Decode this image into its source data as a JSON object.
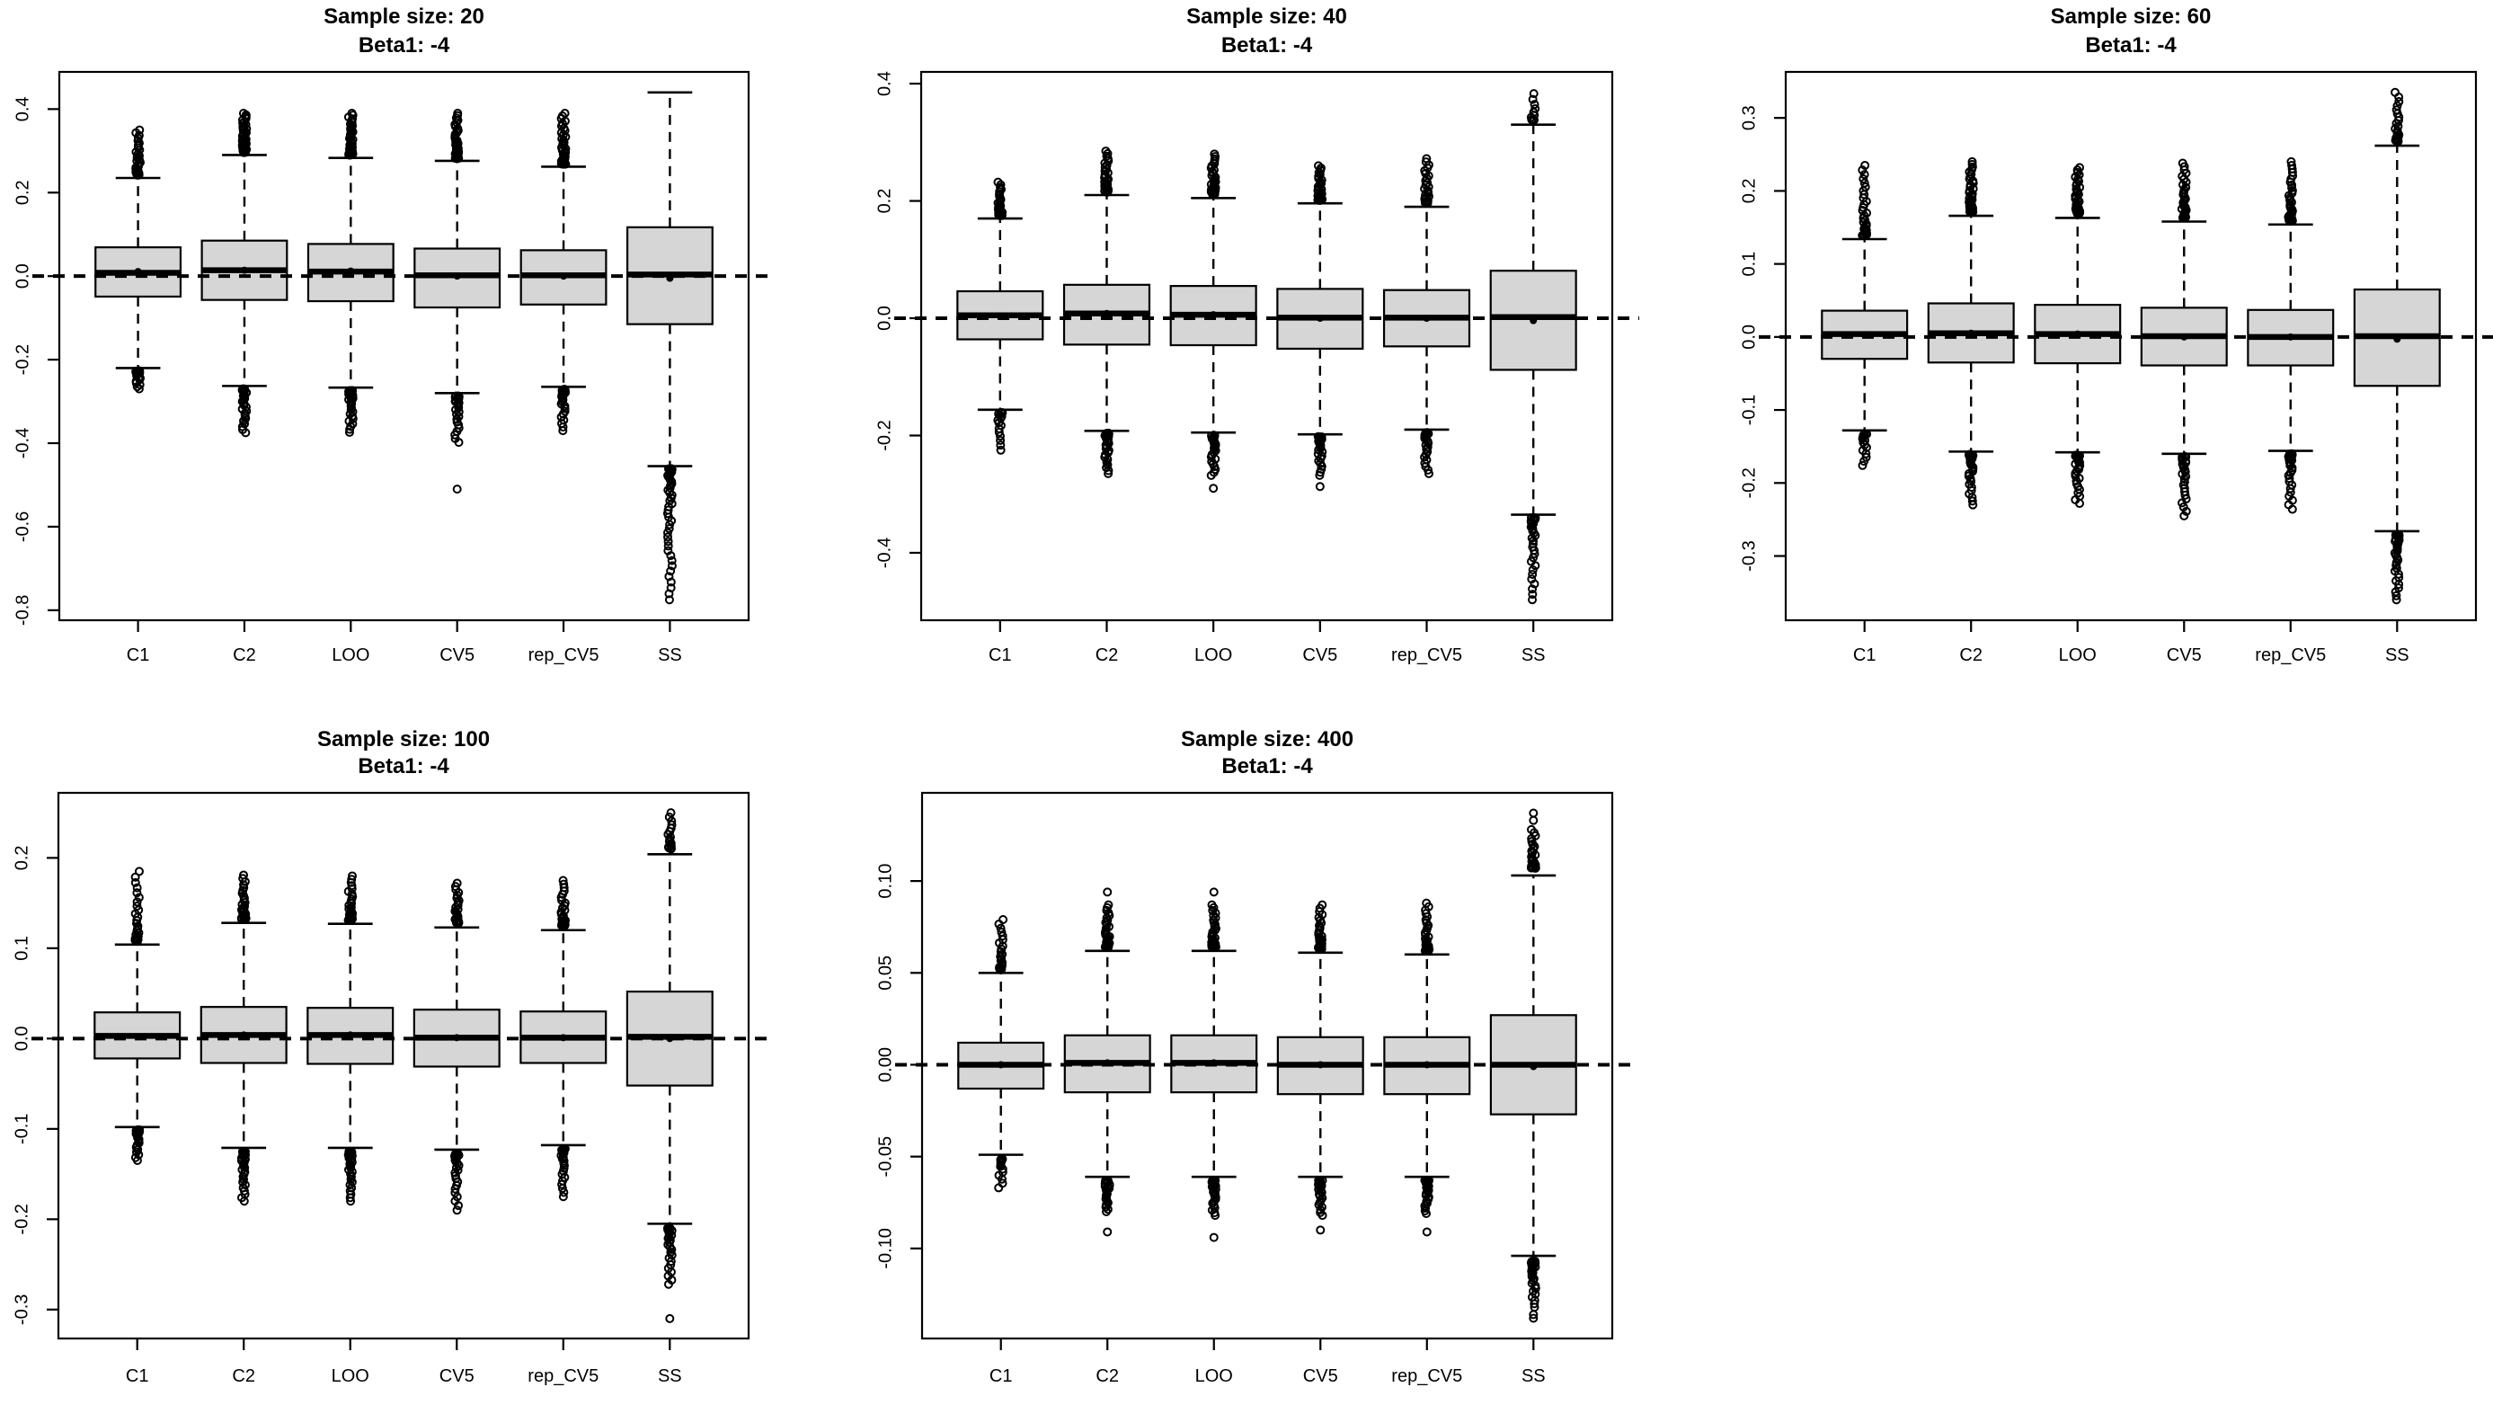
{
  "figure": {
    "background": "#ffffff",
    "box_fill": "#d6d6d6",
    "line_color": "#000000",
    "grid": {
      "rows": 2,
      "cols": 3,
      "empty_cells": [
        "row2-col3"
      ]
    }
  },
  "chart_data": [
    {
      "type": "boxplot",
      "title": "Sample size: 20",
      "subtitle": "Beta1: -4",
      "categories": [
        "C1",
        "C2",
        "LOO",
        "CV5",
        "rep_CV5",
        "SS"
      ],
      "ylim": [
        -0.824,
        0.489
      ],
      "yticks": [
        0.4,
        0.2,
        0.0,
        -0.2,
        -0.4,
        -0.6,
        -0.8
      ],
      "ytick_labels": [
        "0.4",
        "0.2",
        "0.0",
        "-0.2",
        "-0.4",
        "-0.6",
        "-0.8"
      ],
      "ref_line": 0,
      "boxes": [
        {
          "label": "C1",
          "q1": -0.049,
          "median": 0.008,
          "q3": 0.069,
          "mean": 0.011,
          "whisker_low": -0.22,
          "whisker_high": 0.235,
          "outliers_high": {
            "from": 0.242,
            "to": 0.35,
            "count": 34
          },
          "outliers_low": {
            "from": -0.227,
            "to": -0.27,
            "count": 18
          },
          "extra_outliers": []
        },
        {
          "label": "C2",
          "q1": -0.057,
          "median": 0.014,
          "q3": 0.085,
          "mean": 0.014,
          "whisker_low": -0.263,
          "whisker_high": 0.29,
          "outliers_high": {
            "from": 0.296,
            "to": 0.39,
            "count": 48
          },
          "outliers_low": {
            "from": -0.27,
            "to": -0.375,
            "count": 30
          },
          "extra_outliers": []
        },
        {
          "label": "LOO",
          "q1": -0.06,
          "median": 0.011,
          "q3": 0.077,
          "mean": 0.012,
          "whisker_low": -0.267,
          "whisker_high": 0.283,
          "outliers_high": {
            "from": 0.29,
            "to": 0.39,
            "count": 46
          },
          "outliers_low": {
            "from": -0.274,
            "to": -0.374,
            "count": 30
          },
          "extra_outliers": []
        },
        {
          "label": "CV5",
          "q1": -0.075,
          "median": 0.002,
          "q3": 0.066,
          "mean": 0.0,
          "whisker_low": -0.28,
          "whisker_high": 0.276,
          "outliers_high": {
            "from": 0.282,
            "to": 0.39,
            "count": 40
          },
          "outliers_low": {
            "from": -0.287,
            "to": -0.398,
            "count": 26
          },
          "extra_outliers": [
            -0.51
          ]
        },
        {
          "label": "rep_CV5",
          "q1": -0.068,
          "median": 0.002,
          "q3": 0.062,
          "mean": 0.0,
          "whisker_low": -0.265,
          "whisker_high": 0.262,
          "outliers_high": {
            "from": 0.268,
            "to": 0.39,
            "count": 40
          },
          "outliers_low": {
            "from": -0.271,
            "to": -0.37,
            "count": 24
          },
          "extra_outliers": []
        },
        {
          "label": "SS",
          "q1": -0.115,
          "median": 0.004,
          "q3": 0.117,
          "mean": -0.005,
          "whisker_low": -0.455,
          "whisker_high": 0.44,
          "outliers_high": {
            "from": 0,
            "to": 0,
            "count": 0
          },
          "outliers_low": {
            "from": -0.461,
            "to": -0.775,
            "count": 46
          },
          "extra_outliers": []
        }
      ]
    },
    {
      "type": "boxplot",
      "title": "Sample size: 40",
      "subtitle": "Beta1: -4",
      "categories": [
        "C1",
        "C2",
        "LOO",
        "CV5",
        "rep_CV5",
        "SS"
      ],
      "ylim": [
        -0.515,
        0.42
      ],
      "yticks": [
        0.4,
        0.2,
        0.0,
        -0.2,
        -0.4
      ],
      "ytick_labels": [
        "0.4",
        "0.2",
        "0.0",
        "-0.2",
        "-0.4"
      ],
      "ref_line": 0,
      "boxes": [
        {
          "label": "C1",
          "q1": -0.036,
          "median": 0.005,
          "q3": 0.046,
          "mean": 0.004,
          "whisker_low": -0.156,
          "whisker_high": 0.17,
          "outliers_high": {
            "from": 0.175,
            "to": 0.232,
            "count": 28
          },
          "outliers_low": {
            "from": -0.161,
            "to": -0.225,
            "count": 16
          },
          "extra_outliers": []
        },
        {
          "label": "C2",
          "q1": -0.045,
          "median": 0.008,
          "q3": 0.057,
          "mean": 0.008,
          "whisker_low": -0.192,
          "whisker_high": 0.21,
          "outliers_high": {
            "from": 0.215,
            "to": 0.285,
            "count": 34
          },
          "outliers_low": {
            "from": -0.196,
            "to": -0.265,
            "count": 28
          },
          "extra_outliers": []
        },
        {
          "label": "LOO",
          "q1": -0.046,
          "median": 0.006,
          "q3": 0.055,
          "mean": 0.006,
          "whisker_low": -0.195,
          "whisker_high": 0.205,
          "outliers_high": {
            "from": 0.211,
            "to": 0.28,
            "count": 34
          },
          "outliers_low": {
            "from": -0.2,
            "to": -0.268,
            "count": 28
          },
          "extra_outliers": [
            -0.29
          ]
        },
        {
          "label": "CV5",
          "q1": -0.052,
          "median": 0.001,
          "q3": 0.05,
          "mean": 0.0,
          "whisker_low": -0.198,
          "whisker_high": 0.196,
          "outliers_high": {
            "from": 0.201,
            "to": 0.26,
            "count": 32
          },
          "outliers_low": {
            "from": -0.202,
            "to": -0.268,
            "count": 26
          },
          "extra_outliers": [
            -0.287
          ]
        },
        {
          "label": "rep_CV5",
          "q1": -0.048,
          "median": 0.001,
          "q3": 0.048,
          "mean": 0.0,
          "whisker_low": -0.19,
          "whisker_high": 0.19,
          "outliers_high": {
            "from": 0.196,
            "to": 0.272,
            "count": 30
          },
          "outliers_low": {
            "from": -0.195,
            "to": -0.265,
            "count": 24
          },
          "extra_outliers": []
        },
        {
          "label": "SS",
          "q1": -0.088,
          "median": 0.002,
          "q3": 0.081,
          "mean": -0.004,
          "whisker_low": -0.335,
          "whisker_high": 0.33,
          "outliers_high": {
            "from": 0.338,
            "to": 0.383,
            "count": 10
          },
          "outliers_low": {
            "from": -0.34,
            "to": -0.48,
            "count": 32
          },
          "extra_outliers": []
        }
      ]
    },
    {
      "type": "boxplot",
      "title": "Sample size: 60",
      "subtitle": "Beta1: -4",
      "categories": [
        "C1",
        "C2",
        "LOO",
        "CV5",
        "rep_CV5",
        "SS"
      ],
      "ylim": [
        -0.388,
        0.363
      ],
      "yticks": [
        0.3,
        0.2,
        0.1,
        0.0,
        -0.1,
        -0.2,
        -0.3
      ],
      "ytick_labels": [
        "0.3",
        "0.2",
        "0.1",
        "0.0",
        "-0.1",
        "-0.2",
        "-0.3"
      ],
      "ref_line": 0,
      "boxes": [
        {
          "label": "C1",
          "q1": -0.03,
          "median": 0.004,
          "q3": 0.036,
          "mean": 0.003,
          "whisker_low": -0.128,
          "whisker_high": 0.134,
          "outliers_high": {
            "from": 0.139,
            "to": 0.235,
            "count": 32
          },
          "outliers_low": {
            "from": -0.133,
            "to": -0.176,
            "count": 16
          },
          "extra_outliers": []
        },
        {
          "label": "C2",
          "q1": -0.035,
          "median": 0.005,
          "q3": 0.046,
          "mean": 0.005,
          "whisker_low": -0.157,
          "whisker_high": 0.166,
          "outliers_high": {
            "from": 0.171,
            "to": 0.24,
            "count": 40
          },
          "outliers_low": {
            "from": -0.161,
            "to": -0.23,
            "count": 28
          },
          "extra_outliers": []
        },
        {
          "label": "LOO",
          "q1": -0.036,
          "median": 0.004,
          "q3": 0.044,
          "mean": 0.004,
          "whisker_low": -0.158,
          "whisker_high": 0.163,
          "outliers_high": {
            "from": 0.168,
            "to": 0.232,
            "count": 40
          },
          "outliers_low": {
            "from": -0.162,
            "to": -0.228,
            "count": 28
          },
          "extra_outliers": []
        },
        {
          "label": "CV5",
          "q1": -0.039,
          "median": 0.001,
          "q3": 0.04,
          "mean": 0.0,
          "whisker_low": -0.16,
          "whisker_high": 0.158,
          "outliers_high": {
            "from": 0.163,
            "to": 0.238,
            "count": 34
          },
          "outliers_low": {
            "from": -0.164,
            "to": -0.245,
            "count": 28
          },
          "extra_outliers": []
        },
        {
          "label": "rep_CV5",
          "q1": -0.039,
          "median": 0.0,
          "q3": 0.037,
          "mean": 0.0,
          "whisker_low": -0.156,
          "whisker_high": 0.154,
          "outliers_high": {
            "from": 0.159,
            "to": 0.24,
            "count": 34
          },
          "outliers_low": {
            "from": -0.16,
            "to": -0.236,
            "count": 26
          },
          "extra_outliers": []
        },
        {
          "label": "SS",
          "q1": -0.067,
          "median": 0.001,
          "q3": 0.065,
          "mean": -0.003,
          "whisker_low": -0.266,
          "whisker_high": 0.262,
          "outliers_high": {
            "from": 0.268,
            "to": 0.335,
            "count": 22
          },
          "outliers_low": {
            "from": -0.271,
            "to": -0.36,
            "count": 34
          },
          "extra_outliers": []
        }
      ]
    },
    {
      "type": "boxplot",
      "title": "Sample size: 100",
      "subtitle": "Beta1: -4",
      "categories": [
        "C1",
        "C2",
        "LOO",
        "CV5",
        "rep_CV5",
        "SS"
      ],
      "ylim": [
        -0.332,
        0.272
      ],
      "yticks": [
        0.2,
        0.1,
        0.0,
        -0.1,
        -0.2,
        -0.3
      ],
      "ytick_labels": [
        "0.2",
        "0.1",
        "0.0",
        "-0.1",
        "-0.2",
        "-0.3"
      ],
      "ref_line": 0,
      "boxes": [
        {
          "label": "C1",
          "q1": -0.022,
          "median": 0.003,
          "q3": 0.029,
          "mean": 0.002,
          "whisker_low": -0.098,
          "whisker_high": 0.104,
          "outliers_high": {
            "from": 0.108,
            "to": 0.185,
            "count": 26
          },
          "outliers_low": {
            "from": -0.101,
            "to": -0.135,
            "count": 22
          },
          "extra_outliers": []
        },
        {
          "label": "C2",
          "q1": -0.027,
          "median": 0.004,
          "q3": 0.035,
          "mean": 0.004,
          "whisker_low": -0.121,
          "whisker_high": 0.128,
          "outliers_high": {
            "from": 0.132,
            "to": 0.181,
            "count": 28
          },
          "outliers_low": {
            "from": -0.125,
            "to": -0.18,
            "count": 30
          },
          "extra_outliers": []
        },
        {
          "label": "LOO",
          "q1": -0.028,
          "median": 0.004,
          "q3": 0.034,
          "mean": 0.004,
          "whisker_low": -0.121,
          "whisker_high": 0.127,
          "outliers_high": {
            "from": 0.131,
            "to": 0.18,
            "count": 28
          },
          "outliers_low": {
            "from": -0.125,
            "to": -0.18,
            "count": 30
          },
          "extra_outliers": []
        },
        {
          "label": "CV5",
          "q1": -0.031,
          "median": 0.001,
          "q3": 0.032,
          "mean": 0.001,
          "whisker_low": -0.123,
          "whisker_high": 0.123,
          "outliers_high": {
            "from": 0.128,
            "to": 0.172,
            "count": 26
          },
          "outliers_low": {
            "from": -0.127,
            "to": -0.19,
            "count": 26
          },
          "extra_outliers": []
        },
        {
          "label": "rep_CV5",
          "q1": -0.027,
          "median": 0.001,
          "q3": 0.03,
          "mean": 0.001,
          "whisker_low": -0.118,
          "whisker_high": 0.12,
          "outliers_high": {
            "from": 0.125,
            "to": 0.175,
            "count": 26
          },
          "outliers_low": {
            "from": -0.122,
            "to": -0.175,
            "count": 24
          },
          "extra_outliers": []
        },
        {
          "label": "SS",
          "q1": -0.052,
          "median": 0.002,
          "q3": 0.052,
          "mean": 0.0,
          "whisker_low": -0.205,
          "whisker_high": 0.204,
          "outliers_high": {
            "from": 0.21,
            "to": 0.25,
            "count": 18
          },
          "outliers_low": {
            "from": -0.21,
            "to": -0.272,
            "count": 28
          },
          "extra_outliers": [
            -0.31
          ]
        }
      ]
    },
    {
      "type": "boxplot",
      "title": "Sample size: 400",
      "subtitle": "Beta1: -4",
      "categories": [
        "C1",
        "C2",
        "LOO",
        "CV5",
        "rep_CV5",
        "SS"
      ],
      "ylim": [
        -0.149,
        0.148
      ],
      "yticks": [
        0.1,
        0.05,
        0.0,
        -0.05,
        -0.1
      ],
      "ytick_labels": [
        "0.10",
        "0.05",
        "0.00",
        "-0.05",
        "-0.10"
      ],
      "ref_line": 0,
      "boxes": [
        {
          "label": "C1",
          "q1": -0.013,
          "median": 0.0,
          "q3": 0.012,
          "mean": 0.0,
          "whisker_low": -0.049,
          "whisker_high": 0.05,
          "outliers_high": {
            "from": 0.052,
            "to": 0.079,
            "count": 24
          },
          "outliers_low": {
            "from": -0.051,
            "to": -0.067,
            "count": 14
          },
          "extra_outliers": []
        },
        {
          "label": "C2",
          "q1": -0.015,
          "median": 0.001,
          "q3": 0.016,
          "mean": 0.001,
          "whisker_low": -0.061,
          "whisker_high": 0.062,
          "outliers_high": {
            "from": 0.064,
            "to": 0.087,
            "count": 32
          },
          "outliers_low": {
            "from": -0.063,
            "to": -0.08,
            "count": 28
          },
          "extra_outliers": [
            0.094,
            -0.091
          ]
        },
        {
          "label": "LOO",
          "q1": -0.015,
          "median": 0.001,
          "q3": 0.016,
          "mean": 0.001,
          "whisker_low": -0.061,
          "whisker_high": 0.062,
          "outliers_high": {
            "from": 0.064,
            "to": 0.087,
            "count": 32
          },
          "outliers_low": {
            "from": -0.063,
            "to": -0.082,
            "count": 28
          },
          "extra_outliers": [
            0.094,
            -0.094
          ]
        },
        {
          "label": "CV5",
          "q1": -0.016,
          "median": 0.0,
          "q3": 0.015,
          "mean": 0.0,
          "whisker_low": -0.061,
          "whisker_high": 0.061,
          "outliers_high": {
            "from": 0.063,
            "to": 0.087,
            "count": 28
          },
          "outliers_low": {
            "from": -0.063,
            "to": -0.082,
            "count": 26
          },
          "extra_outliers": [
            -0.09
          ]
        },
        {
          "label": "rep_CV5",
          "q1": -0.016,
          "median": 0.0,
          "q3": 0.015,
          "mean": 0.0,
          "whisker_low": -0.061,
          "whisker_high": 0.06,
          "outliers_high": {
            "from": 0.062,
            "to": 0.088,
            "count": 28
          },
          "outliers_low": {
            "from": -0.063,
            "to": -0.081,
            "count": 26
          },
          "extra_outliers": [
            -0.091
          ]
        },
        {
          "label": "SS",
          "q1": -0.027,
          "median": 0.0,
          "q3": 0.027,
          "mean": -0.001,
          "whisker_low": -0.104,
          "whisker_high": 0.103,
          "outliers_high": {
            "from": 0.107,
            "to": 0.128,
            "count": 26
          },
          "outliers_low": {
            "from": -0.107,
            "to": -0.132,
            "count": 28
          },
          "extra_outliers": [
            0.133,
            0.137,
            -0.136,
            -0.138
          ]
        }
      ]
    }
  ]
}
